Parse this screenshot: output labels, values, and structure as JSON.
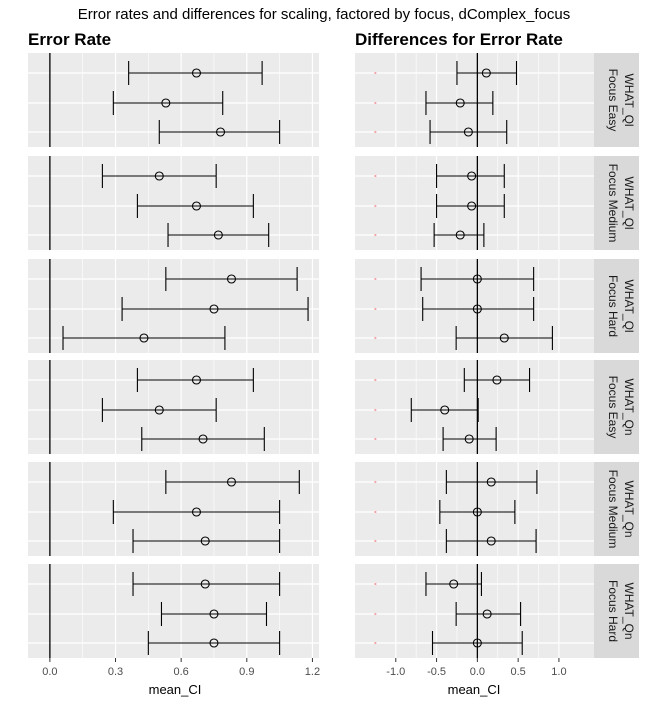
{
  "title": "Error rates and differences for scaling, factored by focus, dComplex_focus",
  "chart_data": [
    {
      "type": "errorbar",
      "title": "Error Rate",
      "xlabel": "mean_CI",
      "xlim": [
        -0.1,
        1.23
      ],
      "x_ticks": [
        "0.0",
        "0.3",
        "0.6",
        "0.9",
        "1.2"
      ],
      "x_tick_values": [
        0.0,
        0.3,
        0.6,
        0.9,
        1.2
      ],
      "reference_line": 0.0,
      "panels": [
        {
          "strip": [
            "WHAT_Ql",
            "Focus Easy"
          ],
          "rows": [
            {
              "mean": 0.67,
              "lo": 0.36,
              "hi": 0.97
            },
            {
              "mean": 0.53,
              "lo": 0.29,
              "hi": 0.79
            },
            {
              "mean": 0.78,
              "lo": 0.5,
              "hi": 1.05
            }
          ]
        },
        {
          "strip": [
            "WHAT_Ql",
            "Focus Medium"
          ],
          "rows": [
            {
              "mean": 0.5,
              "lo": 0.24,
              "hi": 0.76
            },
            {
              "mean": 0.67,
              "lo": 0.4,
              "hi": 0.93
            },
            {
              "mean": 0.77,
              "lo": 0.54,
              "hi": 1.0
            }
          ]
        },
        {
          "strip": [
            "WHAT_Ql",
            "Focus Hard"
          ],
          "rows": [
            {
              "mean": 0.83,
              "lo": 0.53,
              "hi": 1.13
            },
            {
              "mean": 0.75,
              "lo": 0.33,
              "hi": 1.18
            },
            {
              "mean": 0.43,
              "lo": 0.06,
              "hi": 0.8
            }
          ]
        },
        {
          "strip": [
            "WHAT_Qn",
            "Focus Easy"
          ],
          "rows": [
            {
              "mean": 0.67,
              "lo": 0.4,
              "hi": 0.93
            },
            {
              "mean": 0.5,
              "lo": 0.24,
              "hi": 0.76
            },
            {
              "mean": 0.7,
              "lo": 0.42,
              "hi": 0.98
            }
          ]
        },
        {
          "strip": [
            "WHAT_Qn",
            "Focus Medium"
          ],
          "rows": [
            {
              "mean": 0.83,
              "lo": 0.53,
              "hi": 1.14
            },
            {
              "mean": 0.67,
              "lo": 0.29,
              "hi": 1.05
            },
            {
              "mean": 0.71,
              "lo": 0.38,
              "hi": 1.05
            }
          ]
        },
        {
          "strip": [
            "WHAT_Qn",
            "Focus Hard"
          ],
          "rows": [
            {
              "mean": 0.71,
              "lo": 0.38,
              "hi": 1.05
            },
            {
              "mean": 0.75,
              "lo": 0.51,
              "hi": 0.99
            },
            {
              "mean": 0.75,
              "lo": 0.45,
              "hi": 1.05
            }
          ]
        }
      ]
    },
    {
      "type": "errorbar",
      "title": "Differences for Error Rate",
      "xlabel": "mean_CI",
      "xlim": [
        -1.5,
        1.43
      ],
      "x_ticks": [
        "-1.0",
        "-0.5",
        "0.0",
        "0.5",
        "1.0"
      ],
      "x_tick_values": [
        -1.0,
        -0.5,
        0.0,
        0.5,
        1.0
      ],
      "reference_line": 0.0,
      "marker_x": -1.25,
      "panels": [
        {
          "strip": [
            "WHAT_Ql",
            "Focus Easy"
          ],
          "rows": [
            {
              "mean": 0.11,
              "lo": -0.25,
              "hi": 0.48
            },
            {
              "mean": -0.21,
              "lo": -0.63,
              "hi": 0.19
            },
            {
              "mean": -0.11,
              "lo": -0.58,
              "hi": 0.36
            }
          ]
        },
        {
          "strip": [
            "WHAT_Ql",
            "Focus Medium"
          ],
          "rows": [
            {
              "mean": -0.07,
              "lo": -0.5,
              "hi": 0.33
            },
            {
              "mean": -0.07,
              "lo": -0.5,
              "hi": 0.33
            },
            {
              "mean": -0.21,
              "lo": -0.53,
              "hi": 0.08
            }
          ]
        },
        {
          "strip": [
            "WHAT_Ql",
            "Focus Hard"
          ],
          "rows": [
            {
              "mean": 0.0,
              "lo": -0.69,
              "hi": 0.69
            },
            {
              "mean": 0.0,
              "lo": -0.67,
              "hi": 0.69
            },
            {
              "mean": 0.33,
              "lo": -0.26,
              "hi": 0.92
            }
          ]
        },
        {
          "strip": [
            "WHAT_Qn",
            "Focus Easy"
          ],
          "rows": [
            {
              "mean": 0.24,
              "lo": -0.16,
              "hi": 0.64
            },
            {
              "mean": -0.4,
              "lo": -0.81,
              "hi": 0.01
            },
            {
              "mean": -0.1,
              "lo": -0.42,
              "hi": 0.23
            }
          ]
        },
        {
          "strip": [
            "WHAT_Qn",
            "Focus Medium"
          ],
          "rows": [
            {
              "mean": 0.17,
              "lo": -0.38,
              "hi": 0.73
            },
            {
              "mean": 0.0,
              "lo": -0.46,
              "hi": 0.46
            },
            {
              "mean": 0.17,
              "lo": -0.38,
              "hi": 0.72
            }
          ]
        },
        {
          "strip": [
            "WHAT_Qn",
            "Focus Hard"
          ],
          "rows": [
            {
              "mean": -0.29,
              "lo": -0.63,
              "hi": 0.05
            },
            {
              "mean": 0.12,
              "lo": -0.26,
              "hi": 0.53
            },
            {
              "mean": 0.0,
              "lo": -0.55,
              "hi": 0.55
            }
          ]
        }
      ]
    }
  ],
  "colors": {
    "panel_bg": "#ebebeb",
    "strip_bg": "#d9d9d9",
    "grid": "#ffffff",
    "ink": "#000000",
    "marker": "#f4a3a8",
    "tick_text": "#4d4d4d"
  }
}
